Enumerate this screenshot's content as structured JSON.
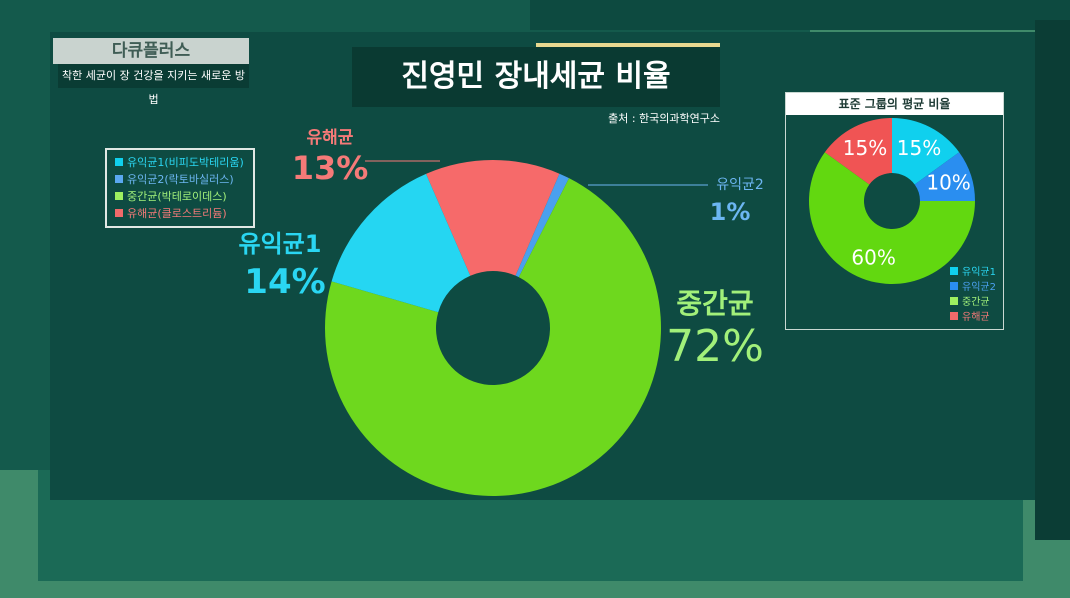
{
  "header": {
    "brand": "다큐플러스",
    "subtitle": "착한 세균이 장 건강을 지키는 새로운 방법"
  },
  "chart_data": [
    {
      "type": "pie",
      "donut": true,
      "title": "진영민 장내세균 비율",
      "source": "출처 : 한국의과학연구소",
      "legend_entries": [
        "유익균1(비피도박테리움)",
        "유익균2(락토바실러스)",
        "중간균(박테로이데스)",
        "유해균(클로스트리듐)"
      ],
      "legend_placement": "top-left",
      "slices": [
        {
          "name": "유해균",
          "value": 13,
          "label": "13%",
          "color": "#f66a6a"
        },
        {
          "name": "유익균2",
          "value": 1,
          "label": "1%",
          "color": "#4aa0ee"
        },
        {
          "name": "중간균",
          "value": 72,
          "label": "72%",
          "color": "#6ed81e"
        },
        {
          "name": "유익균1",
          "value": 14,
          "label": "14%",
          "color": "#25d6f2"
        }
      ]
    },
    {
      "type": "pie",
      "donut": true,
      "title": "표준 그룹의 평균 비율",
      "legend_entries": [
        "유익균1",
        "유익균2",
        "중간균",
        "유해균"
      ],
      "legend_placement": "bottom-right",
      "slices": [
        {
          "name": "유익균1",
          "value": 15,
          "label": "15%",
          "color": "#10d0ee"
        },
        {
          "name": "유익균2",
          "value": 10,
          "label": "10%",
          "color": "#2a8ef0"
        },
        {
          "name": "중간균",
          "value": 60,
          "label": "60%",
          "color": "#62d810"
        },
        {
          "name": "유해균",
          "value": 15,
          "label": "15%",
          "color": "#f05454"
        }
      ]
    }
  ],
  "label_colors": {
    "유익균1": "#2ad6f2",
    "유익균2": "#6cb6f2",
    "중간균": "#a2f07a",
    "유해균": "#f57a78"
  }
}
